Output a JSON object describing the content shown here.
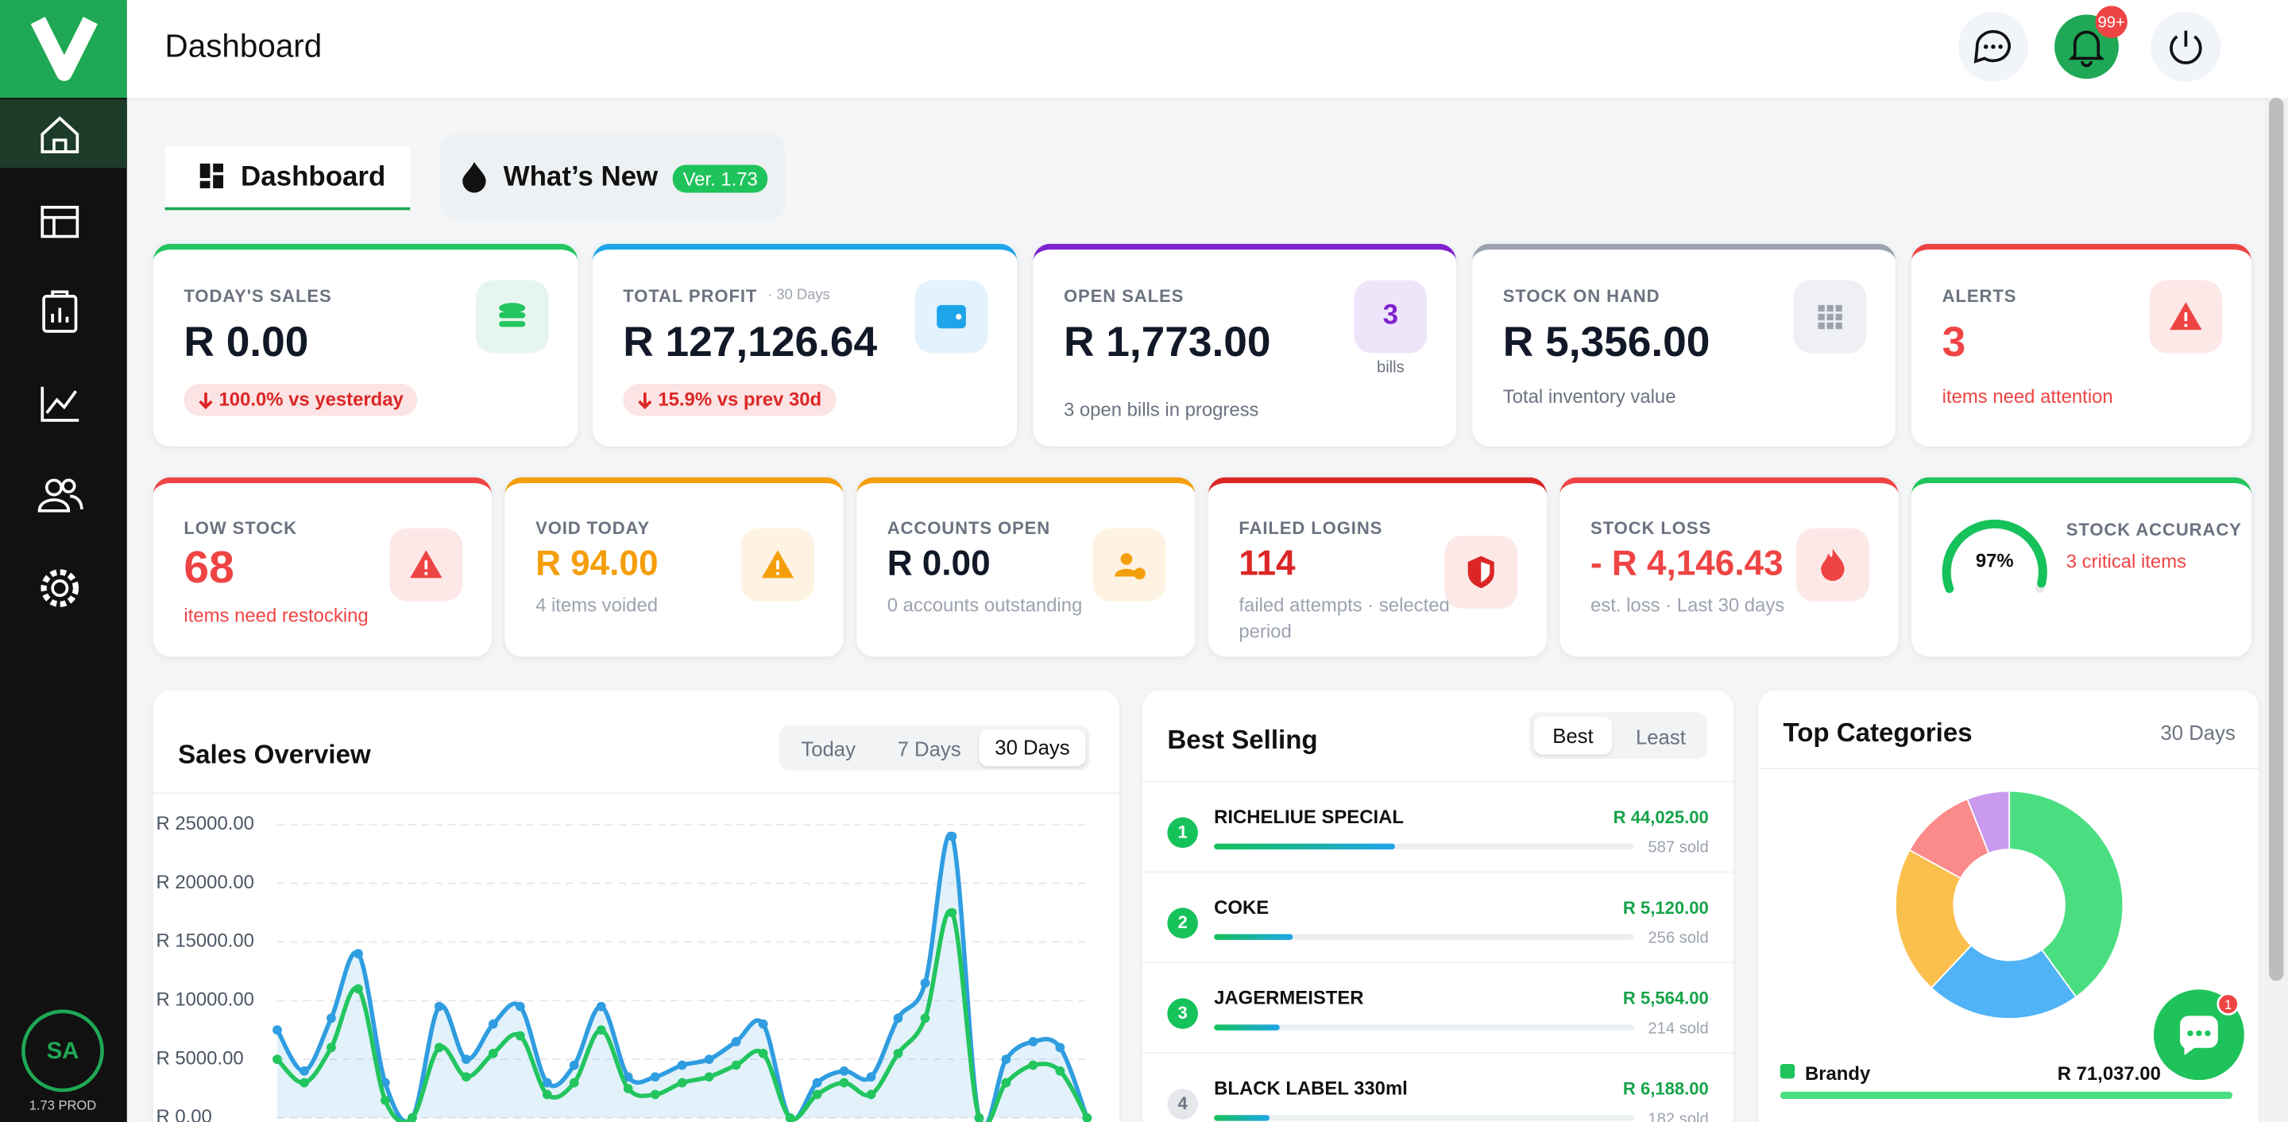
{
  "header": {
    "title": "Dashboard",
    "notification_badge": "99+"
  },
  "sidebar": {
    "avatar": "SA",
    "version": "1.73 PROD"
  },
  "tabs": {
    "items": [
      "Dashboard",
      "What’s New"
    ],
    "version": "Ver. 1.73"
  },
  "summary_cards": [
    {
      "label": "TODAY'S SALES",
      "value": "R 0.00",
      "delta": "100.0% vs yesterday"
    },
    {
      "label": "TOTAL PROFIT",
      "label_note": "· 30 Days",
      "value": "R 127,126.64",
      "delta": "15.9% vs prev 30d"
    },
    {
      "label": "OPEN SALES",
      "value": "R 1,773.00",
      "badge": "3",
      "badge_note": "bills",
      "note": "3 open bills in progress"
    },
    {
      "label": "STOCK ON HAND",
      "value": "R 5,356.00",
      "note": "Total inventory value"
    },
    {
      "label": "ALERTS",
      "value": "3",
      "note": "items need attention"
    }
  ],
  "metric_cards": [
    {
      "label": "LOW STOCK",
      "value": "68",
      "note": "items need restocking"
    },
    {
      "label": "VOID TODAY",
      "value": "R 94.00",
      "note": "4 items voided"
    },
    {
      "label": "ACCOUNTS OPEN",
      "value": "R 0.00",
      "note": "0 accounts outstanding"
    },
    {
      "label": "FAILED LOGINS",
      "value": "114",
      "note": "failed attempts · selected period"
    },
    {
      "label": "STOCK LOSS",
      "value": "- R 4,146.43",
      "note": "est. loss · Last 30 days"
    },
    {
      "label": "STOCK ACCURACY",
      "note": "3 critical items",
      "gauge": {
        "value": 97,
        "label": "97%"
      }
    }
  ],
  "sales_overview": {
    "ranges": [
      "Today",
      "7 Days",
      "30 Days"
    ]
  },
  "best_selling": {
    "title": "Best Selling",
    "toggle": [
      "Best",
      "Least"
    ],
    "items": [
      {
        "rank": "1",
        "name": "RICHELIUE SPECIAL",
        "amount": "R 44,025.00",
        "sold": {
          "value": 587,
          "label": "587 sold"
        }
      },
      {
        "rank": "2",
        "name": "COKE",
        "amount": "R 5,120.00",
        "sold": {
          "value": 256,
          "label": "256 sold"
        }
      },
      {
        "rank": "3",
        "name": "JAGERMEISTER",
        "amount": "R 5,564.00",
        "sold": {
          "value": 214,
          "label": "214 sold"
        }
      },
      {
        "rank": "4",
        "name": "BLACK LABEL 330ml",
        "amount": "R 6,188.00",
        "sold": {
          "value": 182,
          "label": "182 sold"
        }
      }
    ]
  },
  "chat_badge": "1",
  "chart_data": [
    {
      "type": "line",
      "title": "Sales Overview",
      "ylim": [
        0,
        25000
      ],
      "yticks": [
        {
          "value": 0,
          "label": "R 0.00"
        },
        {
          "value": 5000,
          "label": "R 5000.00"
        },
        {
          "value": 10000,
          "label": "R 10000.00"
        },
        {
          "value": 15000,
          "label": "R 15000.00"
        },
        {
          "value": 20000,
          "label": "R 20000.00"
        },
        {
          "value": 25000,
          "label": "R 25000.00"
        }
      ],
      "grid": true,
      "series": [
        {
          "color": "#2f9de0",
          "values": [
            7500,
            4000,
            8500,
            14000,
            3000,
            0,
            9500,
            5000,
            8000,
            9500,
            3000,
            4500,
            9500,
            3500,
            3500,
            4500,
            5000,
            6500,
            8000,
            0,
            3000,
            4000,
            3500,
            8500,
            11500,
            24000,
            0,
            5000,
            6500,
            6000,
            0
          ]
        },
        {
          "color": "#22c55e",
          "values": [
            5000,
            3000,
            6000,
            11000,
            1500,
            0,
            6000,
            3500,
            5500,
            7000,
            2000,
            3000,
            7500,
            2500,
            2000,
            3000,
            3500,
            4500,
            5500,
            0,
            2000,
            3000,
            2000,
            5500,
            8500,
            17500,
            0,
            3000,
            4500,
            4000,
            0
          ]
        }
      ]
    },
    {
      "type": "pie",
      "title": "Top Categories",
      "subtitle": "30 Days",
      "categories": [
        "Brandy",
        null,
        null,
        null,
        null
      ],
      "amounts": [
        "R 71,037.00",
        null,
        null,
        null,
        null
      ],
      "values": [
        40,
        22,
        21,
        11,
        6
      ],
      "colors": [
        "#4ade80",
        "#4fb3f6",
        "#fbbf4d",
        "#fb8a8a",
        "#c99af0"
      ]
    }
  ]
}
